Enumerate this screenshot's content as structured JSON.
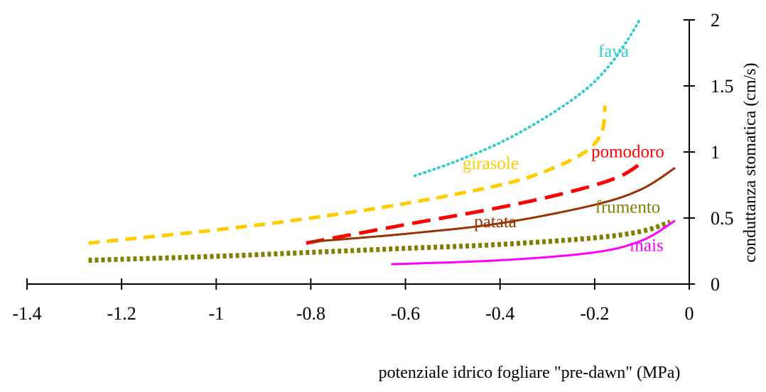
{
  "chart_data": {
    "type": "line",
    "title": "",
    "xlabel": "potenziale idrico fogliare \"pre-dawn\"  (MPa)",
    "ylabel": "conduttanza stomatica (cm/s)",
    "xlim": [
      -1.4,
      0
    ],
    "ylim": [
      0,
      2
    ],
    "x_ticks": [
      -1.4,
      -1.2,
      -1,
      -0.8,
      -0.6,
      -0.4,
      -0.2,
      0
    ],
    "x_tick_labels": [
      "-1.4",
      "-1.2",
      "-1",
      "-0.8",
      "-0.6",
      "-0.4",
      "-0.2",
      "0"
    ],
    "y_ticks": [
      0,
      0.5,
      1,
      1.5,
      2
    ],
    "y_tick_labels": [
      "0",
      "0.5",
      "1",
      "1.5",
      "2"
    ],
    "grid": false,
    "legend": "inline labels",
    "series": [
      {
        "name": "fava",
        "color": "#33CCCC",
        "style": "dotted",
        "points": [
          [
            -0.58,
            0.82
          ],
          [
            -0.5,
            0.92
          ],
          [
            -0.4,
            1.07
          ],
          [
            -0.3,
            1.27
          ],
          [
            -0.22,
            1.47
          ],
          [
            -0.17,
            1.65
          ],
          [
            -0.13,
            1.85
          ],
          [
            -0.105,
            2.0
          ]
        ],
        "label_x": -0.16,
        "label_y": 1.72
      },
      {
        "name": "girasole",
        "color": "#FFCC00",
        "style": "dashed",
        "points": [
          [
            -1.27,
            0.31
          ],
          [
            -1.0,
            0.41
          ],
          [
            -0.8,
            0.5
          ],
          [
            -0.6,
            0.61
          ],
          [
            -0.4,
            0.75
          ],
          [
            -0.3,
            0.86
          ],
          [
            -0.22,
            1.0
          ],
          [
            -0.185,
            1.15
          ],
          [
            -0.178,
            1.35
          ]
        ],
        "label_x": -0.42,
        "label_y": 0.87
      },
      {
        "name": "pomodoro",
        "color": "#FF0000",
        "style": "longdash",
        "points": [
          [
            -0.81,
            0.31
          ],
          [
            -0.6,
            0.45
          ],
          [
            -0.4,
            0.58
          ],
          [
            -0.25,
            0.7
          ],
          [
            -0.15,
            0.81
          ],
          [
            -0.1,
            0.92
          ]
        ],
        "label_x": -0.13,
        "label_y": 0.96
      },
      {
        "name": "patata",
        "color": "#993300",
        "style": "solid",
        "points": [
          [
            -0.8,
            0.32
          ],
          [
            -0.6,
            0.38
          ],
          [
            -0.4,
            0.46
          ],
          [
            -0.2,
            0.6
          ],
          [
            -0.1,
            0.72
          ],
          [
            -0.03,
            0.88
          ]
        ],
        "label_x": -0.41,
        "label_y": 0.43
      },
      {
        "name": "frumento",
        "color": "#808000",
        "style": "thick-dotted",
        "points": [
          [
            -1.27,
            0.18
          ],
          [
            -1.0,
            0.21
          ],
          [
            -0.8,
            0.24
          ],
          [
            -0.6,
            0.27
          ],
          [
            -0.4,
            0.3
          ],
          [
            -0.2,
            0.35
          ],
          [
            -0.1,
            0.4
          ],
          [
            -0.04,
            0.47
          ]
        ],
        "label_x": -0.13,
        "label_y": 0.54
      },
      {
        "name": "mais",
        "color": "#FF00FF",
        "style": "solid",
        "points": [
          [
            -0.63,
            0.15
          ],
          [
            -0.4,
            0.18
          ],
          [
            -0.2,
            0.24
          ],
          [
            -0.1,
            0.33
          ],
          [
            -0.03,
            0.48
          ]
        ],
        "label_x": -0.09,
        "label_y": 0.25
      }
    ]
  }
}
